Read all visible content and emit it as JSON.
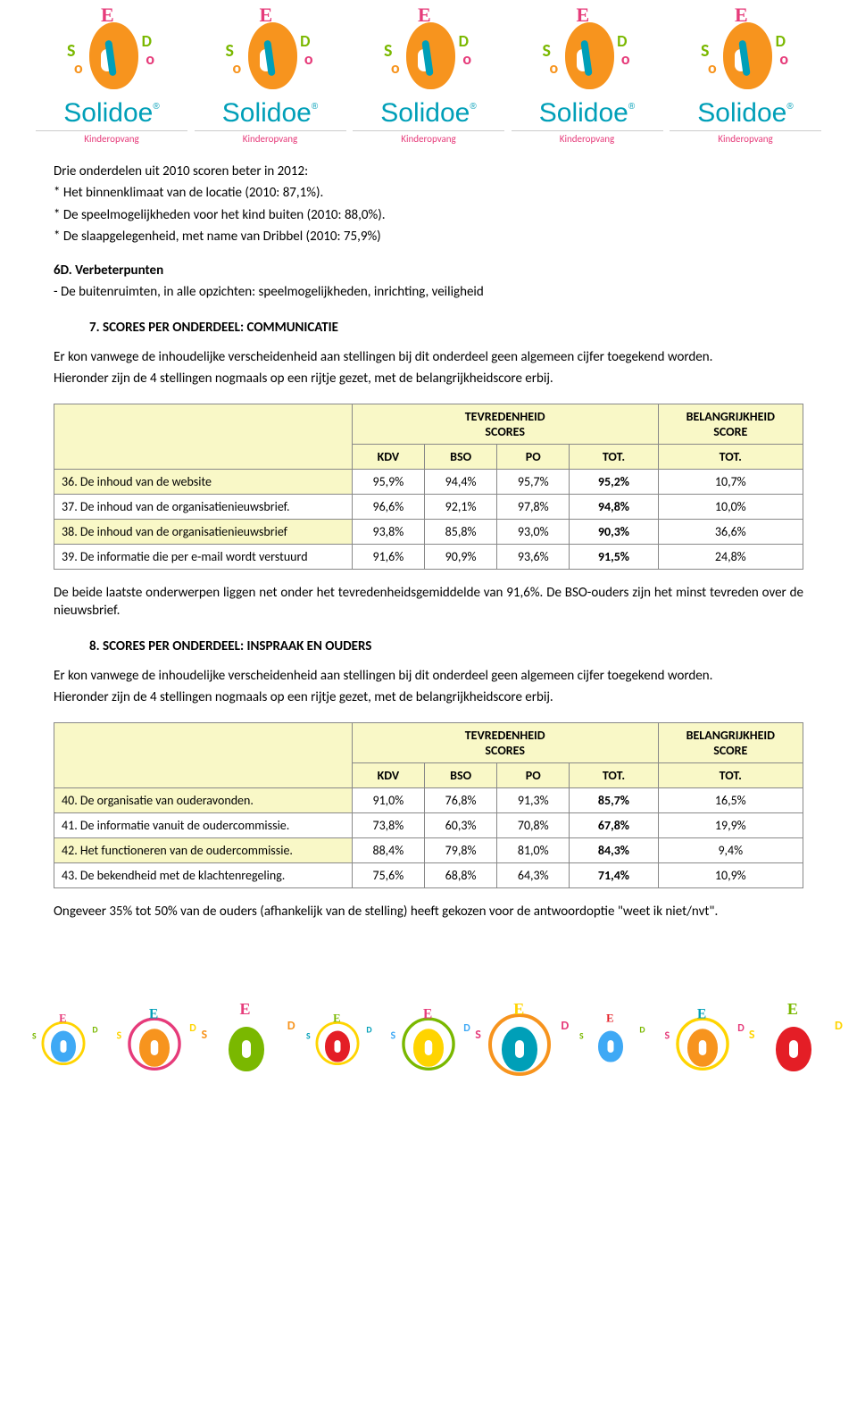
{
  "logo": {
    "brand": "Solidoe",
    "sub": "Kinderopvang"
  },
  "intro": {
    "p1": "Drie onderdelen uit 2010 scoren beter in 2012:",
    "b1": "* Het binnenklimaat van de locatie (2010: 87,1%).",
    "b2": "* De speelmogelijkheden voor het kind buiten (2010: 88,0%).",
    "b3": "* De slaapgelegenheid, met name van Dribbel (2010: 75,9%)",
    "h6d": "6D. Verbeterpunten",
    "p6d": "- De buitenruimten, in alle opzichten: speelmogelijkheden, inrichting, veiligheid"
  },
  "section7": {
    "heading": "7.   SCORES PER ONDERDEEL: COMMUNICATIE",
    "p1": "Er kon vanwege de inhoudelijke verscheidenheid aan stellingen bij dit onderdeel geen algemeen cijfer toegekend worden.",
    "p2": "Hieronder zijn de 4 stellingen nogmaals op een rijtje gezet, met de belangrijkheidscore erbij.",
    "after": "De beide laatste onderwerpen liggen net onder het tevredenheidsgemiddelde van 91,6%. De BSO-ouders zijn het minst tevreden over de nieuwsbrief."
  },
  "tableHdr": {
    "tev": "TEVREDENHEID",
    "scores": "SCORES",
    "bel": "BELANGRIJKHEID",
    "score": "SCORE",
    "kdv": "KDV",
    "bso": "BSO",
    "po": "PO",
    "tot": "TOT.",
    "tot2": "TOT."
  },
  "table7": {
    "rows": [
      {
        "label": "36. De inhoud van de website",
        "kdv": "95,9%",
        "bso": "94,4%",
        "po": "95,7%",
        "tot": "95,2%",
        "imp": "10,7%"
      },
      {
        "label": "37. De inhoud van de organisatienieuwsbrief.",
        "kdv": "96,6%",
        "bso": "92,1%",
        "po": "97,8%",
        "tot": "94,8%",
        "imp": "10,0%"
      },
      {
        "label": "38. De inhoud van de organisatienieuwsbrief",
        "kdv": "93,8%",
        "bso": "85,8%",
        "po": "93,0%",
        "tot": "90,3%",
        "imp": "36,6%"
      },
      {
        "label": "39. De informatie die per e-mail wordt verstuurd",
        "kdv": "91,6%",
        "bso": "90,9%",
        "po": "93,6%",
        "tot": "91,5%",
        "imp": "24,8%"
      }
    ]
  },
  "section8": {
    "heading": "8.   SCORES PER ONDERDEEL: INSPRAAK EN OUDERS",
    "p1": "Er kon vanwege de inhoudelijke verscheidenheid aan stellingen bij dit onderdeel geen algemeen cijfer toegekend worden.",
    "p2": "Hieronder zijn de 4 stellingen nogmaals op een rijtje gezet, met de belangrijkheidscore erbij.",
    "after": "Ongeveer 35% tot 50% van de ouders (afhankelijk van de stelling) heeft gekozen voor de antwoordoptie \"weet ik niet/nvt\"."
  },
  "table8": {
    "rows": [
      {
        "label": "40. De organisatie van ouderavonden.",
        "kdv": "91,0%",
        "bso": "76,8%",
        "po": "91,3%",
        "tot": "85,7%",
        "imp": "16,5%"
      },
      {
        "label": "41. De informatie vanuit de oudercommissie.",
        "kdv": "73,8%",
        "bso": "60,3%",
        "po": "70,8%",
        "tot": "67,8%",
        "imp": "19,9%"
      },
      {
        "label": "42. Het functioneren van de oudercommissie.",
        "kdv": "88,4%",
        "bso": "79,8%",
        "po": "81,0%",
        "tot": "84,3%",
        "imp": "9,4%"
      },
      {
        "label": "43. De bekendheid met de klachtenregeling.",
        "kdv": "75,6%",
        "bso": "68,8%",
        "po": "64,3%",
        "tot": "71,4%",
        "imp": "10,9%"
      }
    ]
  },
  "colors": {
    "headerBg": "#f9f8c7",
    "border": "#888888",
    "brand": "#009fb8",
    "pink": "#e63b7a",
    "orange": "#f7941e",
    "green": "#7ab800",
    "yellow": "#ffd400",
    "red": "#e41e26",
    "blue": "#3fa9f5"
  },
  "footer_palettes": [
    {
      "circle": "#ffd400",
      "body": "#3fa9f5",
      "e": "#e63b7a",
      "d": "#7ab800"
    },
    {
      "circle": "#e63b7a",
      "body": "#f7941e",
      "e": "#009fb8",
      "d": "#ffd400"
    },
    {
      "circle": "none",
      "body": "#7ab800",
      "e": "#e63b7a",
      "d": "#f7941e"
    },
    {
      "circle": "#ffd400",
      "body": "#e41e26",
      "e": "#7ab800",
      "d": "#009fb8"
    },
    {
      "circle": "#7ab800",
      "body": "#ffd400",
      "e": "#e63b7a",
      "d": "#3fa9f5"
    },
    {
      "circle": "#f7941e",
      "body": "#009fb8",
      "e": "#ffd400",
      "d": "#e63b7a"
    },
    {
      "circle": "none",
      "body": "#3fa9f5",
      "e": "#e41e26",
      "d": "#7ab800"
    },
    {
      "circle": "#ffd400",
      "body": "#f7941e",
      "e": "#009fb8",
      "d": "#e63b7a"
    },
    {
      "circle": "none",
      "body": "#e41e26",
      "e": "#7ab800",
      "d": "#ffd400"
    }
  ]
}
